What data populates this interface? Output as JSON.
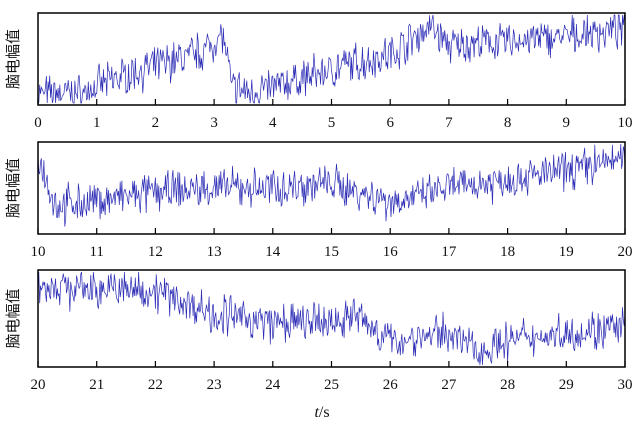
{
  "chart_data": [
    {
      "type": "line",
      "xlim": [
        0,
        10
      ],
      "ticks": [
        "0",
        "1",
        "2",
        "3",
        "4",
        "5",
        "6",
        "7",
        "8",
        "9",
        "10"
      ],
      "ylabel": "脑电幅值",
      "color": "#2b2bb5",
      "trend_x": [
        0,
        0.8,
        1.2,
        2.0,
        2.8,
        3.15,
        3.3,
        3.6,
        4.0,
        5.0,
        6.0,
        6.7,
        7.0,
        8.0,
        9.0,
        10.0
      ],
      "trend_y": [
        0.1,
        0.12,
        0.25,
        0.42,
        0.58,
        0.78,
        0.18,
        0.12,
        0.18,
        0.38,
        0.55,
        0.88,
        0.65,
        0.7,
        0.75,
        0.85
      ]
    },
    {
      "type": "line",
      "xlim": [
        10,
        20
      ],
      "ticks": [
        "10",
        "11",
        "12",
        "13",
        "14",
        "15",
        "16",
        "17",
        "18",
        "19",
        "20"
      ],
      "ylabel": "脑电幅值",
      "color": "#2b2bb5",
      "trend_x": [
        10.0,
        10.1,
        10.3,
        11.0,
        12.0,
        13.0,
        14.0,
        15.0,
        16.0,
        16.5,
        17.0,
        18.0,
        19.0,
        20.0
      ],
      "trend_y": [
        0.85,
        0.7,
        0.3,
        0.35,
        0.45,
        0.5,
        0.5,
        0.55,
        0.35,
        0.4,
        0.5,
        0.6,
        0.7,
        0.85
      ]
    },
    {
      "type": "line",
      "xlim": [
        20,
        30
      ],
      "ticks": [
        "20",
        "21",
        "22",
        "23",
        "24",
        "25",
        "26",
        "27",
        "28",
        "29",
        "30"
      ],
      "ylabel": "脑电幅值",
      "color": "#2b2bb5",
      "trend_x": [
        20.0,
        21.0,
        22.0,
        23.0,
        24.0,
        25.0,
        25.4,
        26.0,
        27.0,
        27.5,
        28.0,
        29.0,
        30.0
      ],
      "trend_y": [
        0.85,
        0.82,
        0.8,
        0.55,
        0.45,
        0.45,
        0.55,
        0.25,
        0.35,
        0.15,
        0.25,
        0.35,
        0.4
      ]
    }
  ],
  "xlabel_italic": "t",
  "xlabel_unit": "/s"
}
